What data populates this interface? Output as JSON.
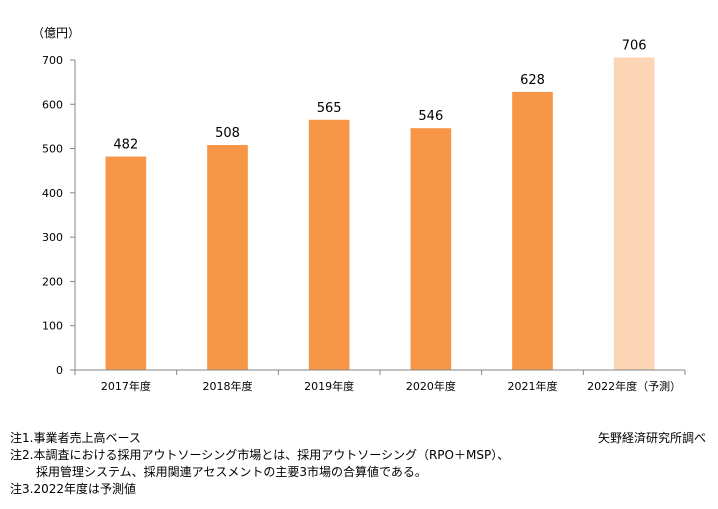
{
  "chart_data": {
    "type": "bar",
    "unit_label": "（億円）",
    "categories": [
      "2017年度",
      "2018年度",
      "2019年度",
      "2020年度",
      "2021年度",
      "2022年度（予測）"
    ],
    "values": [
      482,
      508,
      565,
      546,
      628,
      706
    ],
    "data_labels": [
      "482",
      "508",
      "565",
      "546",
      "628",
      "706"
    ],
    "forecast_flags": [
      false,
      false,
      false,
      false,
      false,
      true
    ],
    "ylim": [
      0,
      700
    ],
    "yticks": [
      0,
      100,
      200,
      300,
      400,
      500,
      600,
      700
    ],
    "colors": {
      "actual": "#F79646",
      "forecast": "#FCD5B5",
      "axis": "#868686"
    },
    "grid": false,
    "legend": "none"
  },
  "notes": {
    "note1": "注1.事業者売上高ベース",
    "note2_line1": "注2.本調査における採用アウトソーシング市場とは、採用アウトソーシング（RPO＋MSP）、",
    "note2_line2": "採用管理システム、採用関連アセスメントの主要3市場の合算値である。",
    "note3": "注3.2022年度は予測値"
  },
  "source": "矢野経済研究所調べ"
}
